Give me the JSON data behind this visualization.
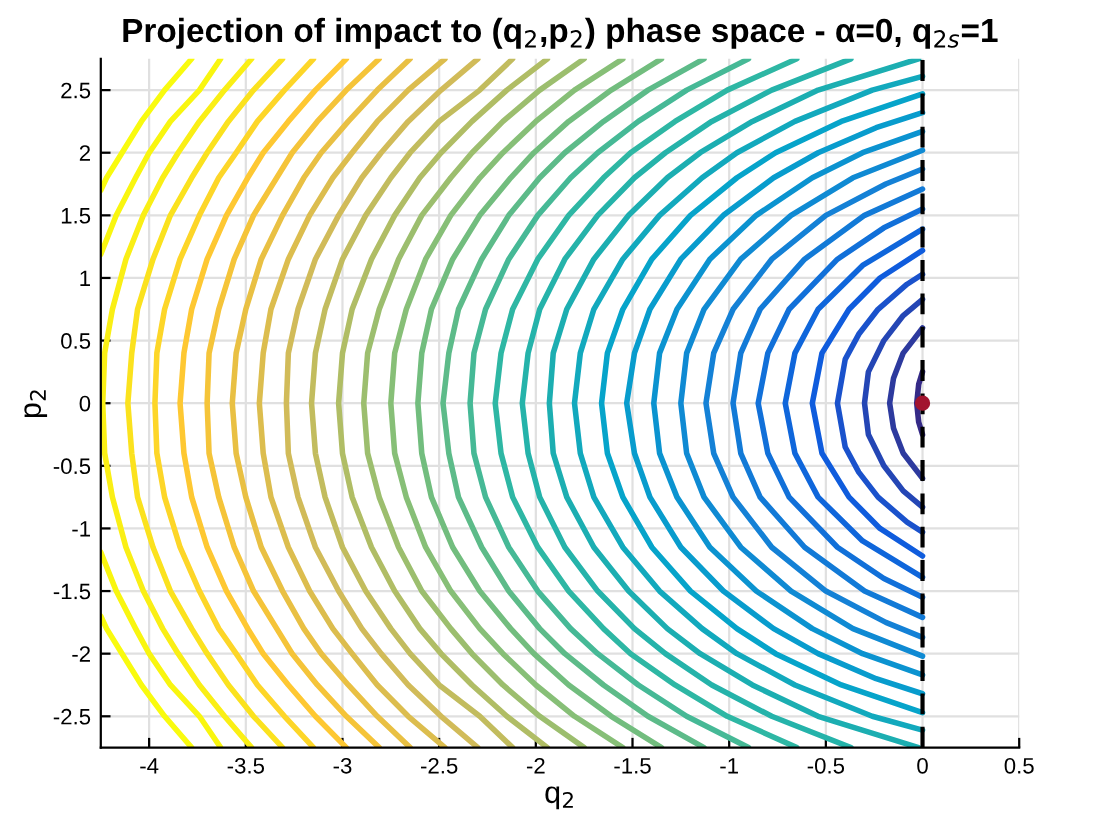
{
  "chart_data": {
    "type": "line",
    "title": "Projection of impact to (q$_{2}$,p$_{2}$) phase space - α=0, q$_{2s}$=1",
    "xlabel": "q$_{2}$",
    "ylabel": "p$_{2}$",
    "xlim": [
      -4.25,
      0.5
    ],
    "ylim": [
      -2.75,
      2.75
    ],
    "xticks": [
      -4,
      -3.5,
      -3,
      -2.5,
      -2,
      -1.5,
      -1,
      -0.5,
      0,
      0.5
    ],
    "yticks": [
      -2.5,
      -2,
      -1.5,
      -1,
      -0.5,
      0,
      0.5,
      1,
      1.5,
      2,
      2.5
    ],
    "grid": true,
    "ref_lines": [
      {
        "axis": "x",
        "value": 0,
        "color": "#000000",
        "line_style": "dashed"
      }
    ],
    "series": [
      {
        "color": "#352a87",
        "x": [
          0,
          -0.02,
          -0.03,
          -0.02,
          0
        ],
        "values": [
          0.25,
          0.15,
          0,
          -0.15,
          -0.25
        ]
      },
      {
        "color": "#2d3a9e",
        "x": [
          0,
          -0.05,
          -0.1,
          -0.15,
          -0.17,
          -0.15,
          -0.1,
          -0.05,
          0
        ],
        "values": [
          0.6,
          0.5,
          0.4,
          0.2,
          0,
          -0.2,
          -0.4,
          -0.5,
          -0.6
        ]
      },
      {
        "color": "#2446b5",
        "x": [
          0,
          -0.1,
          -0.2,
          -0.28,
          -0.3,
          -0.28,
          -0.2,
          -0.1,
          0
        ],
        "values": [
          0.83,
          0.7,
          0.5,
          0.25,
          0,
          -0.25,
          -0.5,
          -0.7,
          -0.83
        ]
      },
      {
        "color": "#1a52cc",
        "x": [
          0,
          -0.08,
          -0.23,
          -0.33,
          -0.4,
          -0.44,
          -0.4,
          -0.33,
          -0.23,
          -0.08,
          0
        ],
        "values": [
          1.03,
          0.95,
          0.75,
          0.55,
          0.35,
          0,
          -0.35,
          -0.55,
          -0.75,
          -0.95,
          -1.03
        ]
      },
      {
        "color": "#0f5cdd",
        "x": [
          0,
          -0.22,
          -0.38,
          -0.52,
          -0.57,
          -0.52,
          -0.38,
          -0.22,
          0
        ],
        "values": [
          1.22,
          1,
          0.75,
          0.4,
          0,
          -0.4,
          -0.75,
          -1,
          -1.22
        ]
      },
      {
        "color": "#0f66db",
        "x": [
          0,
          -0.31,
          -0.54,
          -0.66,
          -0.71,
          -0.66,
          -0.54,
          -0.31,
          0
        ],
        "values": [
          1.39,
          1.1,
          0.75,
          0.4,
          0,
          -0.4,
          -0.75,
          -1.1,
          -1.39
        ]
      },
      {
        "color": "#1170d9",
        "x": [
          0,
          -0.2,
          -0.44,
          -0.69,
          -0.8,
          -0.85,
          -0.8,
          -0.69,
          -0.44,
          -0.2,
          0
        ],
        "values": [
          1.55,
          1.4,
          1.15,
          0.75,
          0.4,
          0,
          -0.4,
          -0.75,
          -1.15,
          -1.4,
          -1.55
        ]
      },
      {
        "color": "#127ad7",
        "x": [
          0,
          -0.3,
          -0.61,
          -0.84,
          -0.94,
          -0.98,
          -0.94,
          -0.84,
          -0.61,
          -0.3,
          0
        ],
        "values": [
          1.71,
          1.5,
          1.15,
          0.75,
          0.4,
          0,
          -0.4,
          -0.75,
          -1.15,
          -1.5,
          -1.71
        ]
      },
      {
        "color": "#1481d6",
        "x": [
          0,
          -0.19,
          -0.5,
          -0.78,
          -0.98,
          -1.08,
          -1.12,
          -1.08,
          -0.98,
          -0.78,
          -0.5,
          -0.19,
          0
        ],
        "values": [
          1.87,
          1.75,
          1.5,
          1.15,
          0.75,
          0.4,
          0,
          -0.4,
          -0.75,
          -1.15,
          -1.5,
          -1.75,
          -1.87
        ]
      },
      {
        "color": "#0f8ad3",
        "x": [
          0,
          -0.36,
          -0.68,
          -0.94,
          -1.13,
          -1.22,
          -1.25,
          -1.22,
          -1.13,
          -0.94,
          -0.68,
          -0.36,
          0
        ],
        "values": [
          2.02,
          1.8,
          1.5,
          1.15,
          0.75,
          0.4,
          0,
          -0.4,
          -0.75,
          -1.15,
          -1.5,
          -1.8,
          -2.02
        ]
      },
      {
        "color": "#0b93d0",
        "x": [
          0,
          -0.31,
          -0.57,
          -0.86,
          -1.1,
          -1.27,
          -1.36,
          -1.39,
          -1.36,
          -1.27,
          -1.1,
          -0.86,
          -0.57,
          -0.31,
          0
        ],
        "values": [
          2.17,
          2,
          1.8,
          1.5,
          1.15,
          0.75,
          0.4,
          0,
          -0.4,
          -0.75,
          -1.15,
          -1.5,
          -1.8,
          -2,
          -2.17
        ]
      },
      {
        "color": "#089ccd",
        "x": [
          0,
          -0.24,
          -0.54,
          -0.77,
          -1.03,
          -1.25,
          -1.41,
          -1.49,
          -1.53,
          -1.49,
          -1.41,
          -1.25,
          -1.03,
          -0.77,
          -0.54,
          -0.24,
          0
        ],
        "values": [
          2.32,
          2.2,
          2,
          1.8,
          1.5,
          1.15,
          0.75,
          0.4,
          0,
          -0.4,
          -0.75,
          -1.15,
          -1.5,
          -1.8,
          -2,
          -2.2,
          -2.32
        ]
      },
      {
        "color": "#06a4ca",
        "x": [
          0,
          -0.42,
          -0.76,
          -0.96,
          -1.2,
          -1.4,
          -1.55,
          -1.63,
          -1.66,
          -1.63,
          -1.55,
          -1.4,
          -1.2,
          -0.96,
          -0.76,
          -0.42,
          0
        ],
        "values": [
          2.47,
          2.25,
          2,
          1.8,
          1.5,
          1.15,
          0.75,
          0.4,
          0,
          -0.4,
          -0.75,
          -1.15,
          -1.5,
          -1.8,
          -2,
          -2.25,
          -2.47
        ]
      },
      {
        "color": "#12a9bd",
        "x": [
          0,
          -0.26,
          -0.66,
          -0.96,
          -1.14,
          -1.36,
          -1.55,
          -1.7,
          -1.77,
          -1.8,
          -1.77,
          -1.7,
          -1.55,
          -1.36,
          -1.14,
          -0.96,
          -0.66,
          -0.26,
          0
        ],
        "values": [
          2.61,
          2.5,
          2.25,
          2,
          1.8,
          1.5,
          1.15,
          0.75,
          0.4,
          0,
          -0.4,
          -0.75,
          -1.15,
          -1.5,
          -1.8,
          -2,
          -2.25,
          -2.5,
          -2.61
        ]
      },
      {
        "color": "#1caeb1",
        "x": [
          -0.02,
          -0.54,
          -0.88,
          -1.15,
          -1.32,
          -1.52,
          -1.7,
          -1.84,
          -1.91,
          -1.93,
          -1.91,
          -1.84,
          -1.7,
          -1.52,
          -1.32,
          -1.15,
          -0.88,
          -0.54,
          -0.02
        ],
        "values": [
          2.75,
          2.5,
          2.25,
          2,
          1.8,
          1.5,
          1.15,
          0.75,
          0.4,
          0,
          -0.4,
          -0.75,
          -1.15,
          -1.5,
          -1.8,
          -2,
          -2.25,
          -2.5,
          -2.75
        ]
      },
      {
        "color": "#25b3aa",
        "x": [
          -0.37,
          -0.78,
          -1.09,
          -1.33,
          -1.49,
          -1.68,
          -1.85,
          -1.98,
          -2.04,
          -2.07,
          -2.04,
          -1.98,
          -1.85,
          -1.68,
          -1.49,
          -1.33,
          -1.09,
          -0.78,
          -0.37
        ],
        "values": [
          2.75,
          2.5,
          2.25,
          2,
          1.8,
          1.5,
          1.15,
          0.75,
          0.4,
          0,
          -0.4,
          -0.75,
          -1.15,
          -1.5,
          -1.8,
          -2,
          -2.25,
          -2.5,
          -2.75
        ]
      },
      {
        "color": "#2eb7a4",
        "x": [
          -0.65,
          -1.01,
          -1.28,
          -1.51,
          -1.65,
          -1.83,
          -1.99,
          -2.12,
          -2.18,
          -2.21,
          -2.18,
          -2.12,
          -1.99,
          -1.83,
          -1.65,
          -1.51,
          -1.28,
          -1.01,
          -0.65
        ],
        "values": [
          2.75,
          2.5,
          2.25,
          2,
          1.8,
          1.5,
          1.15,
          0.75,
          0.4,
          0,
          -0.4,
          -0.75,
          -1.15,
          -1.5,
          -1.8,
          -2,
          -2.25,
          -2.5,
          -2.75
        ]
      },
      {
        "color": "#46b996",
        "x": [
          -0.9,
          -1.22,
          -1.47,
          -1.68,
          -1.82,
          -1.99,
          -2.14,
          -2.26,
          -2.32,
          -2.34,
          -2.32,
          -2.26,
          -2.14,
          -1.99,
          -1.82,
          -1.68,
          -1.47,
          -1.22,
          -0.9
        ],
        "values": [
          2.75,
          2.5,
          2.25,
          2,
          1.8,
          1.5,
          1.15,
          0.75,
          0.4,
          0,
          -0.4,
          -0.75,
          -1.15,
          -1.5,
          -1.8,
          -2,
          -2.25,
          -2.5,
          -2.75
        ]
      },
      {
        "color": "#5dbb89",
        "x": [
          -1.13,
          -1.42,
          -1.65,
          -1.85,
          -1.98,
          -2.14,
          -2.28,
          -2.4,
          -2.45,
          -2.48,
          -2.45,
          -2.4,
          -2.28,
          -2.14,
          -1.98,
          -1.85,
          -1.65,
          -1.42,
          -1.13
        ],
        "values": [
          2.75,
          2.5,
          2.25,
          2,
          1.8,
          1.5,
          1.15,
          0.75,
          0.4,
          0,
          -0.4,
          -0.75,
          -1.15,
          -1.5,
          -1.8,
          -2,
          -2.25,
          -2.5,
          -2.75
        ]
      },
      {
        "color": "#72bd7e",
        "x": [
          -1.35,
          -1.61,
          -1.83,
          -2.01,
          -2.13,
          -2.29,
          -2.43,
          -2.54,
          -2.59,
          -2.61,
          -2.59,
          -2.54,
          -2.43,
          -2.29,
          -2.13,
          -2.01,
          -1.83,
          -1.61,
          -1.35
        ],
        "values": [
          2.75,
          2.5,
          2.25,
          2,
          1.8,
          1.5,
          1.15,
          0.75,
          0.4,
          0,
          -0.4,
          -0.75,
          -1.15,
          -1.5,
          -1.8,
          -2,
          -2.25,
          -2.5,
          -2.75
        ]
      },
      {
        "color": "#87bf77",
        "x": [
          -1.55,
          -1.8,
          -2.0,
          -2.17,
          -2.29,
          -2.44,
          -2.57,
          -2.67,
          -2.73,
          -2.75,
          -2.73,
          -2.67,
          -2.57,
          -2.44,
          -2.29,
          -2.17,
          -2.0,
          -1.8,
          -1.55
        ],
        "values": [
          2.75,
          2.5,
          2.25,
          2,
          1.8,
          1.5,
          1.15,
          0.75,
          0.4,
          0,
          -0.4,
          -0.75,
          -1.15,
          -1.5,
          -1.8,
          -2,
          -2.25,
          -2.5,
          -2.75
        ]
      },
      {
        "color": "#9cbe6e",
        "x": [
          -1.75,
          -1.98,
          -2.17,
          -2.33,
          -2.44,
          -2.59,
          -2.71,
          -2.81,
          -2.87,
          -2.89,
          -2.87,
          -2.81,
          -2.71,
          -2.59,
          -2.44,
          -2.33,
          -2.17,
          -1.98,
          -1.75
        ],
        "values": [
          2.75,
          2.5,
          2.25,
          2,
          1.8,
          1.5,
          1.15,
          0.75,
          0.4,
          0,
          -0.4,
          -0.75,
          -1.15,
          -1.5,
          -1.8,
          -2,
          -2.25,
          -2.5,
          -2.75
        ]
      },
      {
        "color": "#b0bd65",
        "x": [
          -1.94,
          -2.15,
          -2.33,
          -2.49,
          -2.6,
          -2.73,
          -2.85,
          -2.95,
          -3.0,
          -3.02,
          -3.0,
          -2.95,
          -2.85,
          -2.73,
          -2.6,
          -2.49,
          -2.33,
          -2.15,
          -1.94
        ],
        "values": [
          2.75,
          2.5,
          2.25,
          2,
          1.8,
          1.5,
          1.15,
          0.75,
          0.4,
          0,
          -0.4,
          -0.75,
          -1.15,
          -1.5,
          -1.8,
          -2,
          -2.25,
          -2.5,
          -2.75
        ]
      },
      {
        "color": "#c2bc5e",
        "x": [
          -2.12,
          -2.29,
          -2.5,
          -2.65,
          -2.75,
          -2.88,
          -3.0,
          -3.09,
          -3.14,
          -3.16,
          -3.14,
          -3.09,
          -3.0,
          -2.88,
          -2.75,
          -2.65,
          -2.5,
          -2.29,
          -2.12
        ],
        "values": [
          2.75,
          2.5,
          2.25,
          2,
          1.8,
          1.5,
          1.15,
          0.75,
          0.4,
          0,
          -0.4,
          -0.75,
          -1.15,
          -1.5,
          -1.8,
          -2,
          -2.25,
          -2.5,
          -2.75
        ]
      },
      {
        "color": "#d1bb59",
        "x": [
          -2.3,
          -2.49,
          -2.66,
          -2.8,
          -2.9,
          -3.02,
          -3.14,
          -3.23,
          -3.28,
          -3.29,
          -3.28,
          -3.23,
          -3.14,
          -3.02,
          -2.9,
          -2.8,
          -2.66,
          -2.49,
          -2.3
        ],
        "values": [
          2.75,
          2.5,
          2.25,
          2,
          1.8,
          1.5,
          1.15,
          0.75,
          0.4,
          0,
          -0.4,
          -0.75,
          -1.15,
          -1.5,
          -1.8,
          -2,
          -2.25,
          -2.5,
          -2.75
        ]
      },
      {
        "color": "#dcbd4e",
        "x": [
          -2.47,
          -2.66,
          -2.82,
          -2.95,
          -3.05,
          -3.17,
          -3.28,
          -3.37,
          -3.41,
          -3.43,
          -3.41,
          -3.37,
          -3.28,
          -3.17,
          -3.05,
          -2.95,
          -2.82,
          -2.66,
          -2.47
        ],
        "values": [
          2.75,
          2.5,
          2.25,
          2,
          1.8,
          1.5,
          1.15,
          0.75,
          0.4,
          0,
          -0.4,
          -0.75,
          -1.15,
          -1.5,
          -1.8,
          -2,
          -2.25,
          -2.5,
          -2.75
        ]
      },
      {
        "color": "#e9c043",
        "x": [
          -2.65,
          -2.82,
          -2.97,
          -3.11,
          -3.2,
          -3.31,
          -3.42,
          -3.5,
          -3.55,
          -3.57,
          -3.55,
          -3.5,
          -3.42,
          -3.31,
          -3.2,
          -3.11,
          -2.97,
          -2.82,
          -2.65
        ],
        "values": [
          2.75,
          2.5,
          2.25,
          2,
          1.8,
          1.5,
          1.15,
          0.75,
          0.4,
          0,
          -0.4,
          -0.75,
          -1.15,
          -1.5,
          -1.8,
          -2,
          -2.25,
          -2.5,
          -2.75
        ]
      },
      {
        "color": "#f5c439",
        "x": [
          -2.81,
          -2.98,
          -3.13,
          -3.26,
          -3.34,
          -3.46,
          -3.56,
          -3.64,
          -3.69,
          -3.7,
          -3.69,
          -3.64,
          -3.56,
          -3.46,
          -3.34,
          -3.26,
          -3.13,
          -2.98,
          -2.81
        ],
        "values": [
          2.75,
          2.5,
          2.25,
          2,
          1.8,
          1.5,
          1.15,
          0.75,
          0.4,
          0,
          -0.4,
          -0.75,
          -1.15,
          -1.5,
          -1.8,
          -2,
          -2.25,
          -2.5,
          -2.75
        ]
      },
      {
        "color": "#fec832",
        "x": [
          -2.98,
          -3.14,
          -3.28,
          -3.41,
          -3.49,
          -3.6,
          -3.7,
          -3.78,
          -3.82,
          -3.84,
          -3.82,
          -3.78,
          -3.7,
          -3.6,
          -3.49,
          -3.41,
          -3.28,
          -3.14,
          -2.98
        ],
        "values": [
          2.75,
          2.5,
          2.25,
          2,
          1.8,
          1.5,
          1.15,
          0.75,
          0.4,
          0,
          -0.4,
          -0.75,
          -1.15,
          -1.5,
          -1.8,
          -2,
          -2.25,
          -2.5,
          -2.75
        ]
      },
      {
        "color": "#fdd628",
        "x": [
          -3.15,
          -3.3,
          -3.44,
          -3.55,
          -3.64,
          -3.74,
          -3.84,
          -3.92,
          -3.96,
          -3.97,
          -3.96,
          -3.92,
          -3.84,
          -3.74,
          -3.64,
          -3.55,
          -3.44,
          -3.3,
          -3.15
        ],
        "values": [
          2.75,
          2.5,
          2.25,
          2,
          1.8,
          1.5,
          1.15,
          0.75,
          0.4,
          0,
          -0.4,
          -0.75,
          -1.15,
          -1.5,
          -1.8,
          -2,
          -2.25,
          -2.5,
          -2.75
        ]
      },
      {
        "color": "#fbe21e",
        "x": [
          -3.31,
          -3.46,
          -3.59,
          -3.7,
          -3.78,
          -3.89,
          -3.98,
          -4.06,
          -4.09,
          -4.11,
          -4.09,
          -4.06,
          -3.98,
          -3.89,
          -3.78,
          -3.7,
          -3.59,
          -3.46,
          -3.31
        ],
        "values": [
          2.75,
          2.5,
          2.25,
          2,
          1.8,
          1.5,
          1.15,
          0.75,
          0.4,
          0,
          -0.4,
          -0.75,
          -1.15,
          -1.5,
          -1.8,
          -2,
          -2.25,
          -2.5,
          -2.75
        ]
      },
      {
        "color": "#faef15",
        "x": [
          -3.47,
          -3.61,
          -3.74,
          -3.85,
          -3.93,
          -4.03,
          -4.12,
          -4.19,
          -4.23,
          -4.24,
          -4.23,
          -4.19,
          -4.12,
          -4.03,
          -3.93,
          -3.85,
          -3.74,
          -3.61,
          -3.47
        ],
        "values": [
          2.75,
          2.5,
          2.25,
          2,
          1.8,
          1.5,
          1.15,
          0.75,
          0.4,
          0,
          -0.4,
          -0.75,
          -1.15,
          -1.5,
          -1.8,
          -2,
          -2.25,
          -2.5,
          -2.75
        ]
      },
      {
        "color": "#f9f60f",
        "x": [
          -3.63,
          -3.74,
          -3.89,
          -4.0,
          -4.07,
          -4.17,
          -4.25
        ],
        "values": [
          2.75,
          2.5,
          2.25,
          2,
          1.8,
          1.5,
          1.19
        ]
      },
      {
        "color": "#f9f60f",
        "x": [
          -4.25,
          -4.17,
          -4.07,
          -4.0,
          -3.89,
          -3.74,
          -3.63
        ],
        "values": [
          -1.19,
          -1.5,
          -1.8,
          -2,
          -2.25,
          -2.5,
          -2.75
        ]
      },
      {
        "color": "#f9fb0e",
        "x": [
          -3.78,
          -3.92,
          -4.04,
          -4.14,
          -4.22,
          -4.25
        ],
        "values": [
          2.75,
          2.5,
          2.25,
          2,
          1.8,
          1.7
        ]
      },
      {
        "color": "#f9fb0e",
        "x": [
          -4.25,
          -4.22,
          -4.14,
          -4.04,
          -3.92,
          -3.78
        ],
        "values": [
          -1.7,
          -1.8,
          -2,
          -2.25,
          -2.5,
          -2.75
        ]
      },
      {
        "type": "scatter",
        "color": "#a2142f",
        "marker": "circle",
        "x": [
          0
        ],
        "values": [
          0
        ]
      }
    ]
  }
}
